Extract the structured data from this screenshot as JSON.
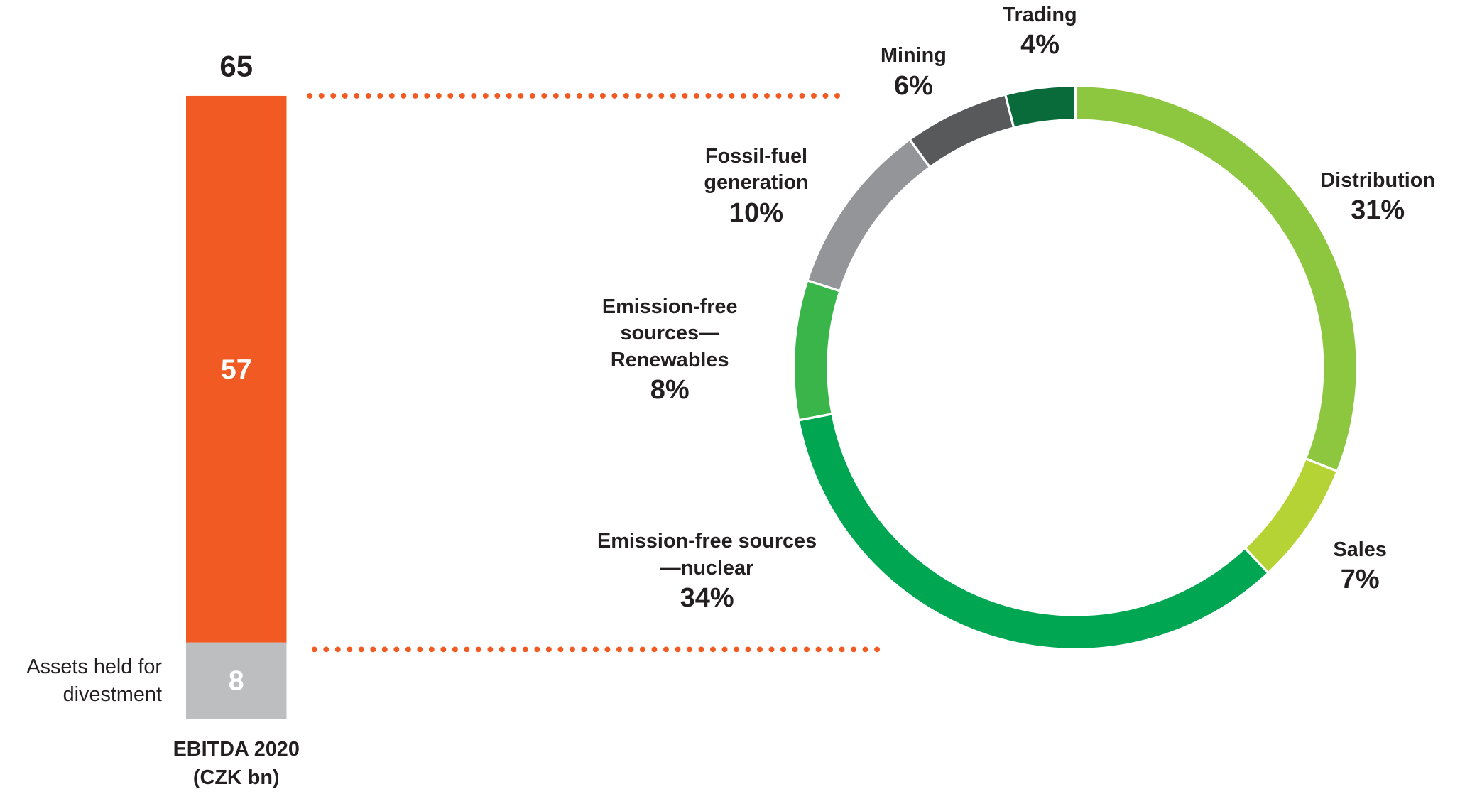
{
  "chart_data": [
    {
      "type": "stacked_bar",
      "xlabel": "EBITDA 2020 (CZK bn)",
      "total": 65,
      "ylim": [
        0,
        65
      ],
      "series": [
        {
          "name": "Assets held for divestment",
          "color": "#bcbec0",
          "values": [
            8
          ]
        },
        {
          "color": "#f15a22",
          "values": [
            57
          ]
        }
      ],
      "connector_color": "#f15a22"
    },
    {
      "type": "donut",
      "categories": [
        "Distribution",
        "Sales",
        "Emission-free sources—nuclear",
        "Emission-free sources—Renewables",
        "Fossil-fuel generation",
        "Mining",
        "Trading"
      ],
      "values": [
        31,
        7,
        34,
        8,
        10,
        6,
        4
      ],
      "value_labels": [
        "31%",
        "7%",
        "34%",
        "8%",
        "10%",
        "6%",
        "4%"
      ],
      "colors": [
        "#8dc63f",
        "#b5d334",
        "#00a651",
        "#39b54a",
        "#939598",
        "#58595b",
        "#0a6b3a"
      ]
    }
  ]
}
